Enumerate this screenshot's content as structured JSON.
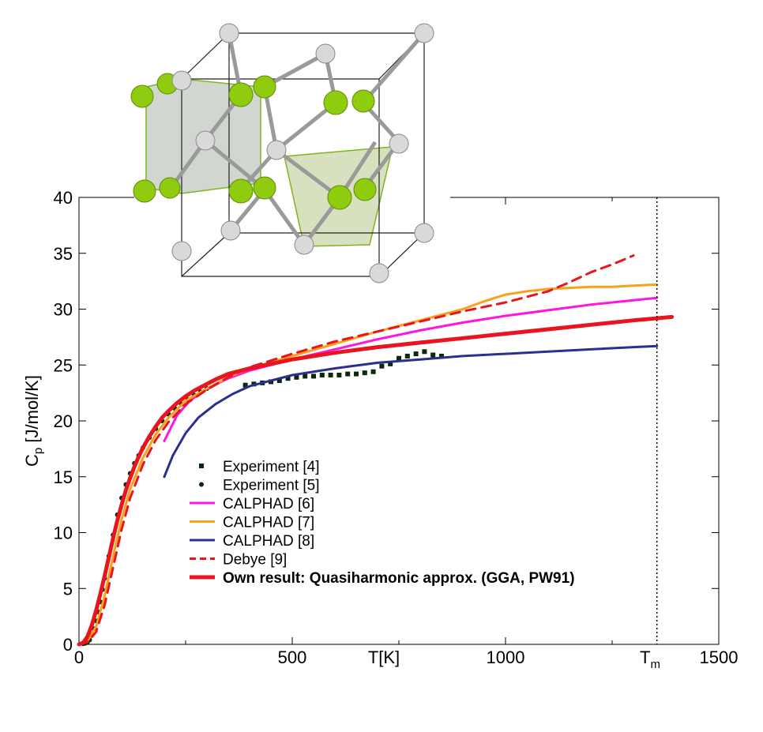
{
  "chart_data": {
    "type": "line",
    "xlabel": "T[K]",
    "ylabel": "C",
    "ylabel_sub": "p",
    "ylabel_unit": " [J/mol/K]",
    "xlim": [
      0,
      1500
    ],
    "ylim": [
      0,
      40
    ],
    "x_ticks": [
      0,
      500,
      1000,
      1500
    ],
    "x_tick_labels": [
      "0",
      "500",
      "1000",
      "1500"
    ],
    "y_ticks": [
      0,
      5,
      10,
      15,
      20,
      25,
      30,
      35,
      40
    ],
    "y_tick_labels": [
      "0",
      "5",
      "10",
      "15",
      "20",
      "25",
      "30",
      "35",
      "40"
    ],
    "tm_label": "T",
    "tm_sub": "m",
    "tm_value": 1355,
    "grid": false,
    "legend_position": "lower-left",
    "series": [
      {
        "name": "Experiment [4]",
        "style": "square-markers",
        "color": "#0a2a0a",
        "x": [
          390,
          410,
          430,
          450,
          470,
          490,
          510,
          530,
          550,
          570,
          590,
          610,
          630,
          650,
          670,
          690,
          710,
          730,
          750,
          770,
          790,
          810,
          830,
          850
        ],
        "y": [
          23.2,
          23.3,
          23.4,
          23.5,
          23.6,
          23.8,
          23.9,
          24.0,
          24.0,
          24.1,
          24.1,
          24.1,
          24.2,
          24.2,
          24.3,
          24.4,
          24.9,
          25.1,
          25.6,
          25.8,
          26.0,
          26.2,
          25.9,
          25.8
        ]
      },
      {
        "name": "Experiment [5]",
        "style": "circle-markers",
        "color": "#0a2a0a",
        "x": [
          10,
          15,
          20,
          25,
          30,
          35,
          40,
          45,
          50,
          55,
          60,
          70,
          80,
          90,
          100,
          110,
          120,
          130,
          140,
          150,
          165,
          180,
          195,
          210,
          225,
          240,
          255,
          270,
          285,
          300
        ],
        "y": [
          0.05,
          0.1,
          0.2,
          0.4,
          0.8,
          1.4,
          2.1,
          2.9,
          3.8,
          4.9,
          5.9,
          7.9,
          9.8,
          11.6,
          13.1,
          14.3,
          15.3,
          16.2,
          16.9,
          17.6,
          18.5,
          19.3,
          20.0,
          20.6,
          21.1,
          21.5,
          21.9,
          22.3,
          22.6,
          22.9
        ]
      },
      {
        "name": "CALPHAD [6]",
        "color": "#ff14e0",
        "width": 3,
        "x": [
          200,
          230,
          260,
          300,
          350,
          400,
          500,
          600,
          700,
          800,
          900,
          1000,
          1100,
          1200,
          1300,
          1355
        ],
        "y": [
          18.2,
          20.5,
          21.8,
          22.9,
          23.8,
          24.5,
          25.5,
          26.4,
          27.3,
          28.1,
          28.8,
          29.4,
          29.9,
          30.4,
          30.8,
          31.0
        ]
      },
      {
        "name": "CALPHAD [7]",
        "color": "#f7a21b",
        "width": 3,
        "x": [
          0,
          20,
          40,
          60,
          80,
          100,
          120,
          150,
          180,
          210,
          250,
          300,
          350,
          400,
          500,
          600,
          700,
          800,
          900,
          950,
          1000,
          1050,
          1100,
          1150,
          1200,
          1250,
          1300,
          1355
        ],
        "y": [
          0,
          0.3,
          1.6,
          4.3,
          7.9,
          11.2,
          13.9,
          16.7,
          18.8,
          20.3,
          21.8,
          22.9,
          23.9,
          24.7,
          25.8,
          26.9,
          28.0,
          29.0,
          30.0,
          30.7,
          31.3,
          31.6,
          31.8,
          31.9,
          32.0,
          32.0,
          32.1,
          32.2
        ]
      },
      {
        "name": "CALPHAD [8]",
        "color": "#2b2f8f",
        "width": 3,
        "x": [
          200,
          220,
          250,
          280,
          320,
          360,
          400,
          500,
          600,
          700,
          800,
          900,
          1000,
          1100,
          1200,
          1300,
          1355
        ],
        "y": [
          15.0,
          16.9,
          18.9,
          20.3,
          21.5,
          22.4,
          23.1,
          24.1,
          24.7,
          25.2,
          25.5,
          25.8,
          26.0,
          26.2,
          26.4,
          26.6,
          26.7
        ]
      },
      {
        "name": "Debye [9]",
        "style": "dashed",
        "color": "#e8141e",
        "width": 3,
        "x": [
          0,
          20,
          40,
          60,
          80,
          100,
          120,
          150,
          180,
          210,
          250,
          300,
          350,
          400,
          500,
          600,
          700,
          800,
          900,
          1000,
          1050,
          1100,
          1150,
          1200,
          1250,
          1300
        ],
        "y": [
          0,
          0.2,
          1.1,
          3.5,
          6.9,
          10.3,
          13.1,
          16.1,
          18.3,
          19.9,
          21.5,
          22.8,
          23.9,
          24.8,
          26.0,
          27.1,
          28.0,
          28.9,
          29.8,
          30.6,
          31.1,
          31.6,
          32.4,
          33.3,
          34.0,
          34.8
        ]
      },
      {
        "name": "Own result: Quasiharmonic approx. (GGA, PW91)",
        "bold": true,
        "color": "#e8141e",
        "width": 5,
        "x": [
          0,
          10,
          20,
          30,
          40,
          50,
          60,
          70,
          80,
          90,
          100,
          110,
          120,
          130,
          140,
          150,
          165,
          180,
          195,
          210,
          230,
          250,
          270,
          290,
          320,
          350,
          400,
          450,
          500,
          600,
          700,
          800,
          900,
          1000,
          1100,
          1200,
          1300,
          1390
        ],
        "y": [
          0,
          0.15,
          0.7,
          1.7,
          3.0,
          4.5,
          6.1,
          7.8,
          9.5,
          11.1,
          12.5,
          13.8,
          14.9,
          15.9,
          16.8,
          17.6,
          18.6,
          19.5,
          20.3,
          20.9,
          21.6,
          22.2,
          22.7,
          23.1,
          23.7,
          24.2,
          24.7,
          25.1,
          25.5,
          26.1,
          26.6,
          27.0,
          27.4,
          27.8,
          28.2,
          28.6,
          29.0,
          29.3
        ]
      }
    ]
  }
}
